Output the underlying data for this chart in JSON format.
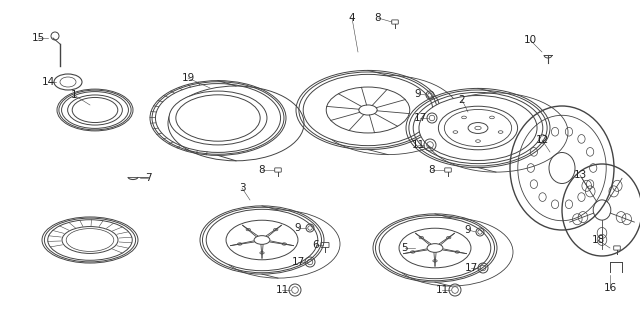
{
  "bg_color": "#ffffff",
  "fig_width": 6.4,
  "fig_height": 3.19,
  "dpi": 100,
  "line_color": "#444444",
  "text_color": "#222222",
  "font_size": 7.5
}
